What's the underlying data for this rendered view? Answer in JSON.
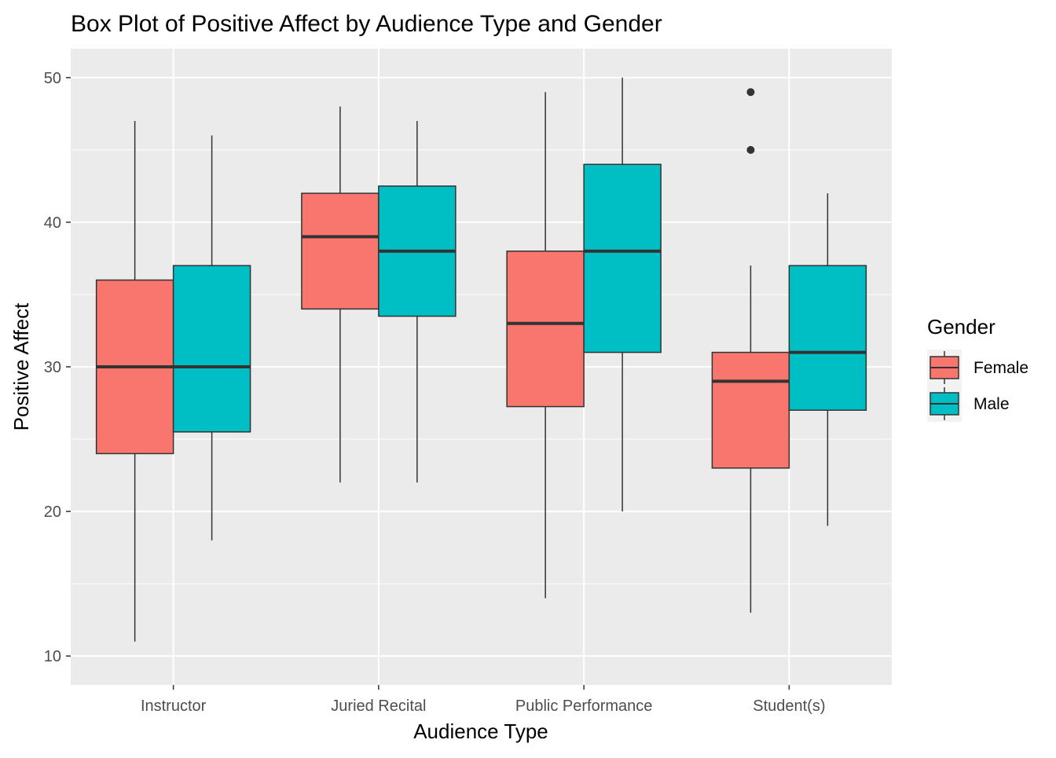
{
  "chart_data": {
    "type": "boxplot",
    "title": "Box Plot of Positive Affect by Audience Type and Gender",
    "xlabel": "Audience Type",
    "ylabel": "Positive Affect",
    "ylim": [
      8,
      52
    ],
    "yticks": [
      10,
      20,
      30,
      40,
      50
    ],
    "grid": true,
    "legend": {
      "title": "Gender",
      "placement": "right"
    },
    "categories": [
      "Instructor",
      "Juried Recital",
      "Public Performance",
      "Student(s)"
    ],
    "series": [
      {
        "name": "Female",
        "color": "#F8766D",
        "boxes": [
          {
            "min": 11,
            "q1": 24,
            "median": 30,
            "q3": 36,
            "max": 47,
            "outliers": []
          },
          {
            "min": 22,
            "q1": 34,
            "median": 39,
            "q3": 42,
            "max": 48,
            "outliers": []
          },
          {
            "min": 14,
            "q1": 27.25,
            "median": 33,
            "q3": 38,
            "max": 49,
            "outliers": []
          },
          {
            "min": 13,
            "q1": 23,
            "median": 29,
            "q3": 31,
            "max": 37,
            "outliers": [
              45,
              49
            ]
          }
        ]
      },
      {
        "name": "Male",
        "color": "#00BFC4",
        "boxes": [
          {
            "min": 18,
            "q1": 25.5,
            "median": 30,
            "q3": 37,
            "max": 46,
            "outliers": []
          },
          {
            "min": 22,
            "q1": 33.5,
            "median": 38,
            "q3": 42.5,
            "max": 47,
            "outliers": []
          },
          {
            "min": 20,
            "q1": 31,
            "median": 38,
            "q3": 44,
            "max": 50,
            "outliers": []
          },
          {
            "min": 19,
            "q1": 27,
            "median": 31,
            "q3": 37,
            "max": 42,
            "outliers": []
          }
        ]
      }
    ]
  }
}
